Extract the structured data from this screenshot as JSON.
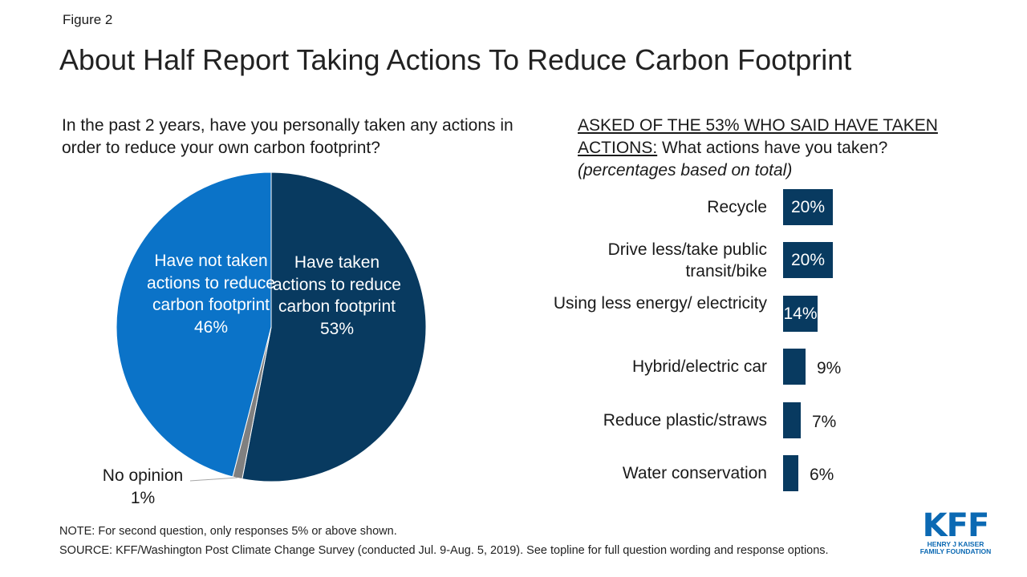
{
  "figure_label": "Figure 2",
  "title": "About Half Report Taking Actions To Reduce Carbon Footprint",
  "left_question": "In the past 2 years, have you personally taken any actions in order to reduce your own carbon footprint?",
  "right_question": {
    "underlined": "ASKED OF THE 53% WHO SAID HAVE TAKEN ACTIONS:",
    "text": " What actions have you taken?",
    "note": "(percentages based on total)"
  },
  "colors": {
    "taken": "#083a60",
    "not_taken": "#0b73c8",
    "no_opinion": "#808080",
    "bar": "#083a60",
    "logo": "#0b69b3"
  },
  "chart_data": [
    {
      "type": "pie",
      "slices": [
        {
          "key": "taken",
          "label": "Have taken actions to reduce carbon footprint",
          "value_label": "53%",
          "value": 53
        },
        {
          "key": "no_opinion",
          "label": "No opinion",
          "value_label": "1%",
          "value": 1
        },
        {
          "key": "not_taken",
          "label": "Have not taken actions to reduce carbon footprint",
          "value_label": "46%",
          "value": 46
        }
      ]
    },
    {
      "type": "bar",
      "orientation": "horizontal",
      "categories": [
        "Recycle",
        "Drive less/take public transit/bike",
        "Using less energy/ electricity",
        "Hybrid/electric car",
        "Reduce plastic/straws",
        "Water conservation"
      ],
      "values": [
        20,
        20,
        14,
        9,
        7,
        6
      ],
      "value_labels": [
        "20%",
        "20%",
        "14%",
        "9%",
        "7%",
        "6%"
      ]
    }
  ],
  "footer": {
    "note": "NOTE: For second question, only responses 5% or above shown.",
    "source": "SOURCE: KFF/Washington Post Climate Change Survey (conducted Jul. 9-Aug. 5, 2019). See topline for full question wording and response options."
  },
  "logo": {
    "main": "KFF",
    "line1": "HENRY J KAISER",
    "line2": "FAMILY FOUNDATION"
  }
}
